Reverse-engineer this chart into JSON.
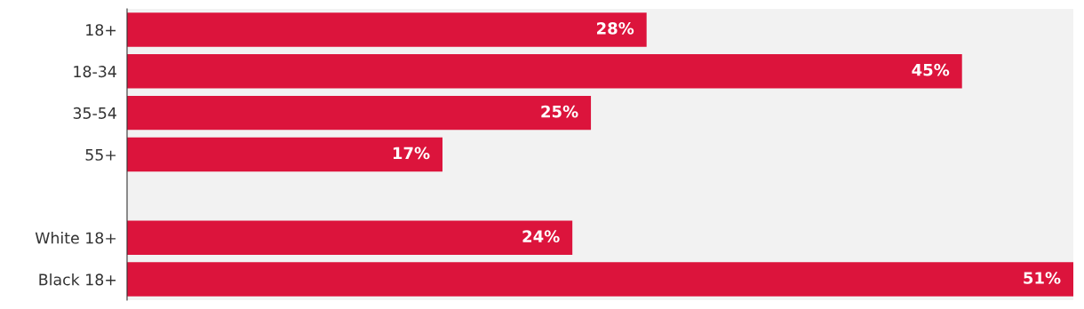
{
  "chart_data": {
    "type": "bar",
    "orientation": "horizontal",
    "categories": [
      "18+",
      "18-34",
      "35-54",
      "55+",
      null,
      "White 18+",
      "Black 18+"
    ],
    "values": [
      28,
      45,
      25,
      17,
      null,
      24,
      51
    ],
    "value_labels": [
      "28%",
      "45%",
      "25%",
      "17%",
      null,
      "24%",
      "51%"
    ],
    "color": "#dc143c",
    "grid": false,
    "legend": false
  }
}
